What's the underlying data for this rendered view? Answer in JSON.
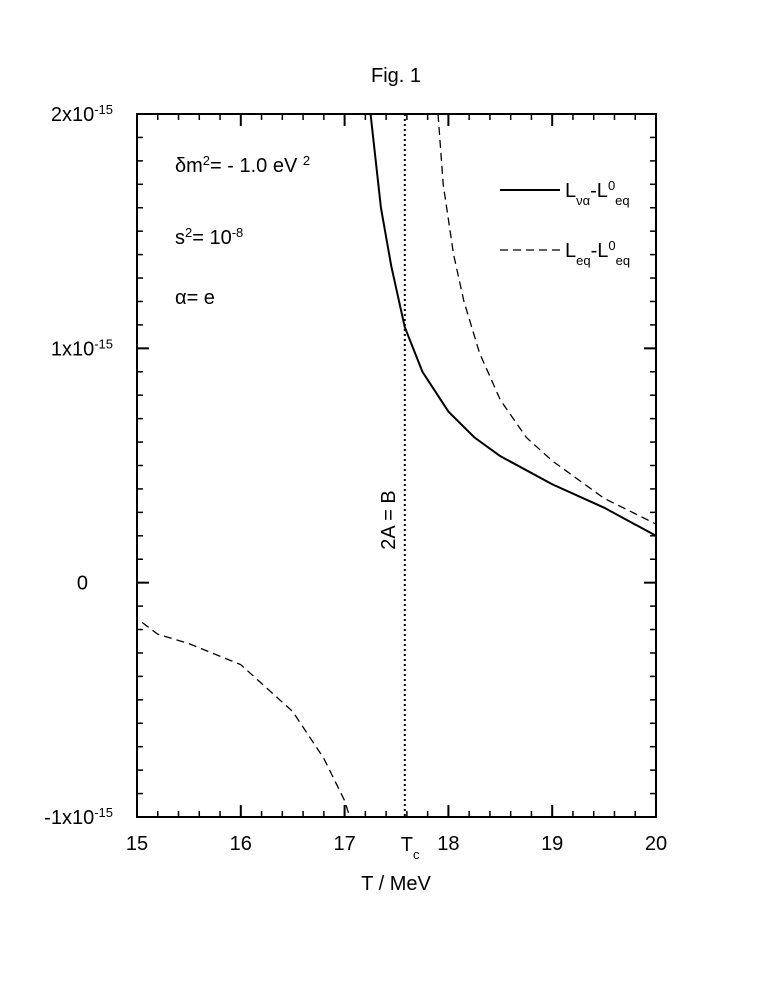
{
  "chart_data": {
    "type": "line",
    "title": "Fig. 1",
    "x_label": "T / MeV",
    "xlim": [
      15,
      20
    ],
    "xticks": [
      15,
      16,
      17,
      18,
      19,
      20
    ],
    "x_minor_step": 0.2,
    "ylim": [
      -1e-15,
      2e-15
    ],
    "yticks": [
      {
        "value": -1e-15,
        "label": "-1x10",
        "exp": "-15"
      },
      0,
      {
        "value": 1e-15,
        "label": "1x10",
        "exp": "-15"
      },
      {
        "value": 2e-15,
        "label": "2x10",
        "exp": "-15"
      }
    ],
    "y_minor_step": 1e-16,
    "series": [
      {
        "name": [
          {
            "text": "L"
          },
          {
            "text": "να",
            "pos": "sub"
          },
          {
            "text": "-L"
          },
          {
            "text": "0",
            "pos": "sup"
          },
          {
            "text": "eq",
            "pos": "sub"
          }
        ],
        "color": "#000000",
        "dash": "solid",
        "x": [
          17.25,
          17.35,
          17.45,
          17.58,
          17.75,
          18,
          18.25,
          18.5,
          19,
          19.5,
          20
        ],
        "values": [
          2e-15,
          1.6e-15,
          1.35e-15,
          1.09e-15,
          9e-16,
          7.3e-16,
          6.2e-16,
          5.4e-16,
          4.2e-16,
          3.2e-16,
          2e-16
        ]
      },
      {
        "name": [
          {
            "text": "L"
          },
          {
            "text": "eq",
            "pos": "sub"
          },
          {
            "text": "-L"
          },
          {
            "text": "0",
            "pos": "sup"
          },
          {
            "text": "eq",
            "pos": "sub"
          }
        ],
        "color": "#000000",
        "dash": "dashed",
        "x": [
          15.05,
          15.2,
          15.5,
          16,
          16.5,
          16.8,
          17,
          17.05,
          null,
          17.9,
          17.95,
          18.05,
          18.15,
          18.3,
          18.5,
          18.75,
          19,
          19.5,
          20
        ],
        "values": [
          -1.7e-16,
          -2.2e-16,
          -2.6e-16,
          -3.5e-16,
          -5.5e-16,
          -7.5e-16,
          -9.3e-16,
          -1e-15,
          null,
          2e-15,
          1.7e-15,
          1.4e-15,
          1.2e-15,
          9.8e-16,
          7.8e-16,
          6.2e-16,
          5.2e-16,
          3.6e-16,
          2.5e-16
        ]
      }
    ],
    "vline": {
      "x": 17.58,
      "text": "2A = B",
      "label": [
        {
          "text": "T"
        },
        {
          "text": "c",
          "pos": "sub"
        }
      ]
    },
    "annotations": [
      [
        {
          "text": "δm"
        },
        {
          "text": "2",
          "pos": "sup"
        },
        {
          "text": "= - 1.0 eV "
        },
        {
          "text": "2",
          "pos": "sup"
        }
      ],
      [
        {
          "text": "s"
        },
        {
          "text": "2",
          "pos": "sup"
        },
        {
          "text": "= 10"
        },
        {
          "text": "-8",
          "pos": "sup"
        }
      ],
      [
        {
          "text": "α= e"
        }
      ]
    ],
    "legend": "upper right"
  }
}
